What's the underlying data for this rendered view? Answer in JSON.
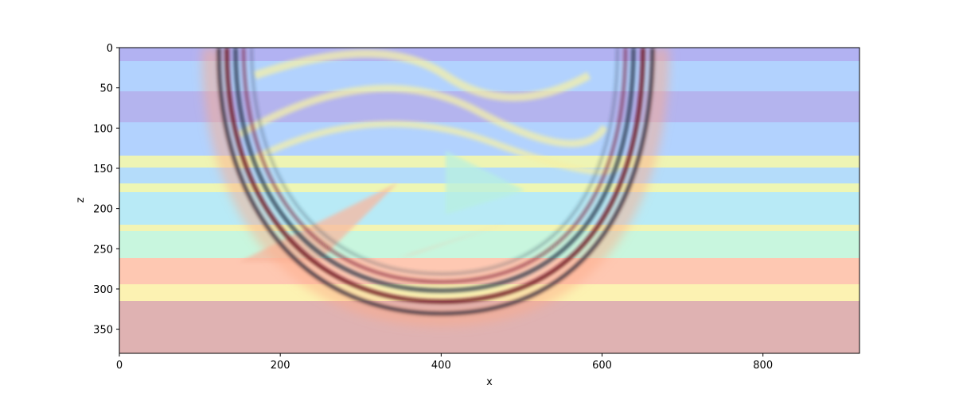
{
  "chart_data": {
    "type": "image",
    "xlabel": "x",
    "ylabel": "z",
    "xlim": [
      0,
      920
    ],
    "ylim": [
      380,
      0
    ],
    "xticks": [
      0,
      200,
      400,
      600,
      800
    ],
    "yticks": [
      0,
      50,
      100,
      150,
      200,
      250,
      300,
      350
    ]
  }
}
